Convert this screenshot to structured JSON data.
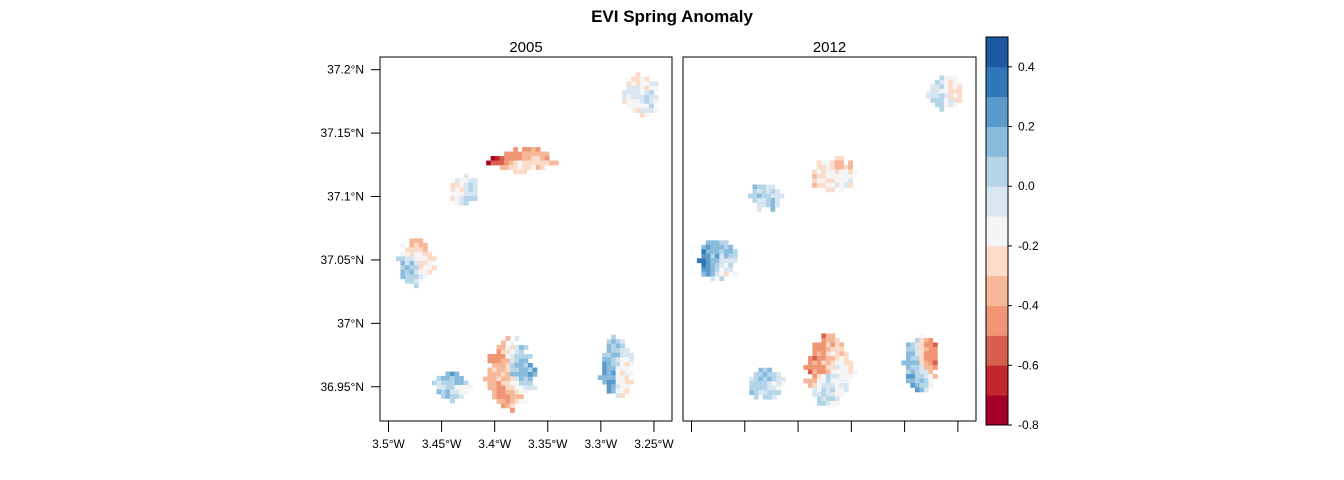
{
  "chart_data": {
    "type": "heatmap",
    "title": "EVI Spring Anomaly",
    "panels": [
      {
        "label": "2005",
        "patches": [
          {
            "lon": -3.262,
            "lat": 37.179,
            "rlon": 0.018,
            "rlat": 0.019,
            "values": [
              -0.1,
              -0.2,
              -0.25,
              0.0,
              -0.15,
              -0.3
            ]
          },
          {
            "lon": -3.374,
            "lat": 37.128,
            "rlon": 0.034,
            "rlat": 0.011,
            "values": [
              -0.75,
              -0.55,
              -0.45,
              -0.35,
              -0.3,
              -0.25
            ]
          },
          {
            "lon": -3.429,
            "lat": 37.105,
            "rlon": 0.017,
            "rlat": 0.013,
            "values": [
              -0.3,
              -0.2,
              -0.1,
              0.0,
              0.05,
              -0.15
            ]
          },
          {
            "lon": -3.474,
            "lat": 37.048,
            "rlon": 0.019,
            "rlat": 0.019,
            "values": [
              0.05,
              -0.3,
              -0.35,
              -0.25,
              -0.2,
              0.1
            ]
          },
          {
            "lon": -3.44,
            "lat": 36.95,
            "rlon": 0.019,
            "rlat": 0.012,
            "values": [
              0.0,
              0.1,
              0.2,
              -0.15,
              -0.1,
              0.15
            ]
          },
          {
            "lon": -3.385,
            "lat": 36.96,
            "rlon": 0.026,
            "rlat": 0.03,
            "values": [
              -0.4,
              -0.5,
              0.1,
              0.2,
              -0.3,
              -0.45
            ]
          },
          {
            "lon": -3.285,
            "lat": 36.965,
            "rlon": 0.018,
            "rlat": 0.026,
            "values": [
              0.2,
              0.15,
              0.0,
              -0.2,
              -0.3,
              0.25
            ]
          }
        ]
      },
      {
        "label": "2012",
        "patches": [
          {
            "lon": -3.262,
            "lat": 37.183,
            "rlon": 0.018,
            "rlat": 0.016,
            "values": [
              -0.1,
              0.0,
              -0.2,
              -0.3,
              -0.15,
              0.05
            ]
          },
          {
            "lon": -3.367,
            "lat": 37.117,
            "rlon": 0.024,
            "rlat": 0.015,
            "values": [
              -0.3,
              -0.25,
              -0.35,
              -0.2,
              -0.1,
              -0.3
            ]
          },
          {
            "lon": -3.43,
            "lat": 37.1,
            "rlon": 0.017,
            "rlat": 0.013,
            "values": [
              0.1,
              0.05,
              0.0,
              -0.1,
              0.15,
              -0.05
            ]
          },
          {
            "lon": -3.475,
            "lat": 37.05,
            "rlon": 0.02,
            "rlat": 0.019,
            "values": [
              0.3,
              0.2,
              0.1,
              0.0,
              -0.2,
              0.15
            ]
          },
          {
            "lon": -3.43,
            "lat": 36.952,
            "rlon": 0.02,
            "rlat": 0.013,
            "values": [
              0.05,
              0.1,
              0.15,
              -0.1,
              0.0,
              0.1
            ]
          },
          {
            "lon": -3.37,
            "lat": 36.962,
            "rlon": 0.025,
            "rlat": 0.03,
            "values": [
              -0.55,
              -0.5,
              -0.3,
              -0.2,
              -0.1,
              0.0
            ]
          },
          {
            "lon": -3.285,
            "lat": 36.968,
            "rlon": 0.018,
            "rlat": 0.024,
            "values": [
              0.15,
              0.1,
              -0.5,
              -0.6,
              0.0,
              0.2
            ]
          }
        ]
      }
    ],
    "x_ticks": [
      -3.5,
      -3.45,
      -3.4,
      -3.35,
      -3.3,
      -3.25
    ],
    "x_tick_labels": [
      "3.5°W",
      "3.45°W",
      "3.4°W",
      "3.35°W",
      "3.3°W",
      "3.25°W"
    ],
    "xlim": [
      -3.508,
      -3.233
    ],
    "y_ticks": [
      37.2,
      37.15,
      37.1,
      37.05,
      37.0,
      36.95
    ],
    "y_tick_labels": [
      "37.2°N",
      "37.15°N",
      "37.1°N",
      "37.05°N",
      "37°N",
      "36.95°N"
    ],
    "ylim": [
      36.923,
      37.21
    ],
    "colorbar": {
      "ticks": [
        0.4,
        0.2,
        0.0,
        -0.2,
        -0.4,
        -0.6,
        -0.8
      ],
      "tick_labels": [
        "0.4",
        "0.2",
        "0.0",
        "-0.2",
        "-0.4",
        "-0.6",
        "-0.8"
      ],
      "range": [
        -0.8,
        0.5
      ],
      "step": 0.1,
      "colors": [
        "#a50026",
        "#c1272d",
        "#d6604d",
        "#f09674",
        "#f7b799",
        "#fcdbc9",
        "#f5f5f5",
        "#d8e6f1",
        "#b4d4e8",
        "#89bbdc",
        "#5a9bcb",
        "#2f77b8",
        "#1c59a1"
      ]
    }
  }
}
